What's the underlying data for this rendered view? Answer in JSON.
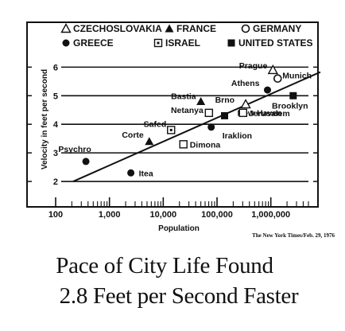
{
  "chart_data": {
    "type": "scatter",
    "xlabel": "Population",
    "ylabel": "Velocity in feet per second",
    "x_scale": "log",
    "xlim": [
      100,
      5000000
    ],
    "ylim": [
      1.5,
      6.4
    ],
    "x_ticks": [
      100,
      1000,
      10000,
      100000,
      1000000
    ],
    "x_tick_labels": [
      "100",
      "1,000",
      "10,000",
      "100,000",
      "1,000,000"
    ],
    "y_ticks": [
      2,
      3,
      4,
      5,
      6
    ],
    "y_tick_labels": [
      "2",
      "3",
      "4",
      "5",
      "6"
    ],
    "grid": "horizontal",
    "legend": [
      {
        "name": "CZECHOSLOVAKIA",
        "marker": "triangle-open"
      },
      {
        "name": "FRANCE",
        "marker": "triangle-filled"
      },
      {
        "name": "GERMANY",
        "marker": "circle-open"
      },
      {
        "name": "GREECE",
        "marker": "circle-filled"
      },
      {
        "name": "ISRAEL",
        "marker": "square-dot"
      },
      {
        "name": "UNITED STATES",
        "marker": "square-filled"
      }
    ],
    "legend_placement": "top",
    "points": [
      {
        "label": "Psychro",
        "x": 365,
        "y": 2.7,
        "marker": "circle-filled"
      },
      {
        "label": "Itea",
        "x": 2500,
        "y": 2.3,
        "marker": "circle-filled"
      },
      {
        "label": "Corte",
        "x": 5500,
        "y": 3.4,
        "marker": "triangle-filled"
      },
      {
        "label": "Safed",
        "x": 14000,
        "y": 3.8,
        "marker": "square-dot"
      },
      {
        "label": "Dimona",
        "x": 23700,
        "y": 3.3,
        "marker": "square-open"
      },
      {
        "label": "Bastia",
        "x": 50000,
        "y": 4.8,
        "marker": "triangle-filled"
      },
      {
        "label": "Netanya",
        "x": 70700,
        "y": 4.4,
        "marker": "square-open"
      },
      {
        "label": "Iraklion",
        "x": 78000,
        "y": 3.9,
        "marker": "circle-filled"
      },
      {
        "label": "New Haven",
        "x": 138000,
        "y": 4.3,
        "marker": "square-filled"
      },
      {
        "label": "Brno",
        "x": 341000,
        "y": 4.7,
        "marker": "triangle-open"
      },
      {
        "label": "Jerusalem",
        "x": 305000,
        "y": 4.4,
        "marker": "square-open"
      },
      {
        "label": "Athens",
        "x": 867000,
        "y": 5.2,
        "marker": "circle-filled"
      },
      {
        "label": "Prague",
        "x": 1093000,
        "y": 5.9,
        "marker": "triangle-open"
      },
      {
        "label": "Munich",
        "x": 1340000,
        "y": 5.6,
        "marker": "circle-open"
      },
      {
        "label": "Brooklyn",
        "x": 2602000,
        "y": 5.0,
        "marker": "square-filled"
      }
    ],
    "trend_line": {
      "from": [
        100,
        2.0
      ],
      "to": [
        5000000,
        5.8
      ]
    }
  },
  "credit": "The New York Times/Feb. 29, 1976",
  "headline_1": "Pace of City Life Found",
  "headline_2": "2.8 Feet per Second Faster"
}
